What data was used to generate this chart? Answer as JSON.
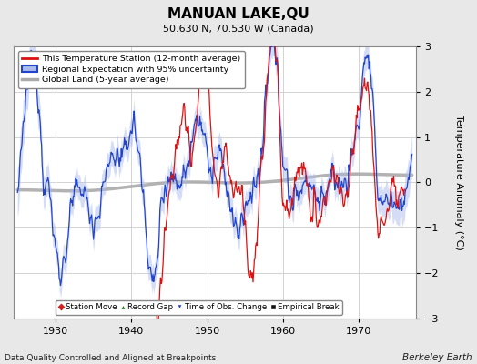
{
  "title": "MANUAN LAKE,QU",
  "subtitle": "50.630 N, 70.530 W (Canada)",
  "xlabel_note": "Data Quality Controlled and Aligned at Breakpoints",
  "credit": "Berkeley Earth",
  "ylabel": "Temperature Anomaly (°C)",
  "xlim": [
    1924.5,
    1977.5
  ],
  "ylim": [
    -3,
    3
  ],
  "yticks": [
    -3,
    -2,
    -1,
    0,
    1,
    2,
    3
  ],
  "xticks": [
    1930,
    1940,
    1950,
    1960,
    1970
  ],
  "plot_bg": "#ffffff",
  "fig_bg": "#e8e8e8",
  "legend_entries": [
    "This Temperature Station (12-month average)",
    "Regional Expectation with 95% uncertainty",
    "Global Land (5-year average)"
  ],
  "seed": 12345
}
